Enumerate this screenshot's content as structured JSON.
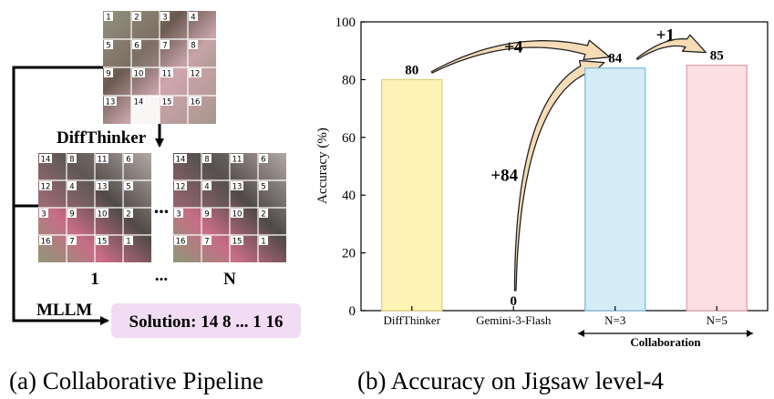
{
  "panel_a": {
    "caption": "(a) Collaborative Pipeline",
    "diffthinker_label": "DiffThinker",
    "mllm_label": "MLLM",
    "solution_text": "Solution: 14 8 ... 1 16",
    "candidate_first_label": "1",
    "candidate_mid_label": "...",
    "candidate_last_label": "N",
    "between_grids": "...",
    "input_grid_numbers": [
      "1",
      "2",
      "3",
      "4",
      "5",
      "6",
      "7",
      "8",
      "9",
      "10",
      "11",
      "12",
      "13",
      "14",
      "15",
      "16"
    ],
    "candidate_grid_numbers": [
      "14",
      "8",
      "11",
      "6",
      "12",
      "4",
      "13",
      "5",
      "3",
      "9",
      "10",
      "2",
      "16",
      "7",
      "15",
      "1"
    ],
    "colors": {
      "solution_box": "#f1dcf3"
    }
  },
  "panel_b": {
    "caption": "(b) Accuracy on Jigsaw level-4",
    "collaboration_label": "Collaboration",
    "annotations": [
      {
        "text": "+4"
      },
      {
        "text": "+1"
      },
      {
        "text": "+84"
      }
    ]
  },
  "chart_data": {
    "type": "bar",
    "categories": [
      "DiffThinker",
      "Gemini-3-Flash",
      "N=3",
      "N=5"
    ],
    "values": [
      80,
      0,
      84,
      85
    ],
    "ylabel": "Accuracy (%)",
    "xlabel": "",
    "ylim": [
      0,
      100
    ],
    "yticks": [
      0,
      20,
      40,
      60,
      80,
      100
    ],
    "grid": false,
    "colors": {
      "fills": [
        "#fdf3b4",
        "#ffffff",
        "#d5ecf7",
        "#fcdfe2"
      ],
      "strokes": [
        "#ddd07a",
        "#bbbbbb",
        "#7bbad8",
        "#dca0a6"
      ],
      "arrow": "#f6dcb6",
      "arrow_stroke": "#222222"
    }
  }
}
